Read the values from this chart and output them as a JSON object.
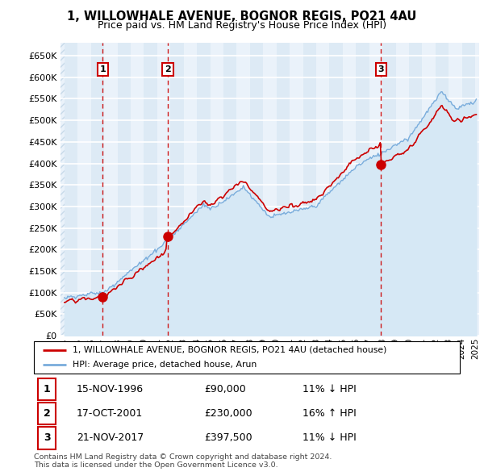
{
  "title": "1, WILLOWHALE AVENUE, BOGNOR REGIS, PO21 4AU",
  "subtitle": "Price paid vs. HM Land Registry's House Price Index (HPI)",
  "property_label": "1, WILLOWHALE AVENUE, BOGNOR REGIS, PO21 4AU (detached house)",
  "hpi_label": "HPI: Average price, detached house, Arun",
  "transactions": [
    {
      "num": 1,
      "date": "15-NOV-1996",
      "price": 90000,
      "pct": "11%",
      "dir": "↓",
      "year": 1996.88
    },
    {
      "num": 2,
      "date": "17-OCT-2001",
      "price": 230000,
      "pct": "16%",
      "dir": "↑",
      "year": 2001.79
    },
    {
      "num": 3,
      "date": "21-NOV-2017",
      "price": 397500,
      "pct": "11%",
      "dir": "↓",
      "year": 2017.89
    }
  ],
  "property_color": "#cc0000",
  "hpi_color": "#7aaddc",
  "hpi_fill_color": "#d6e8f5",
  "bg_even_color": "#ddeaf5",
  "bg_odd_color": "#eaf2fa",
  "hatch_color": "#c8daea",
  "grid_color": "#ffffff",
  "ylim": [
    0,
    680000
  ],
  "yticks": [
    0,
    50000,
    100000,
    150000,
    200000,
    250000,
    300000,
    350000,
    400000,
    450000,
    500000,
    550000,
    600000,
    650000
  ],
  "xlim_start": 1993.7,
  "xlim_end": 2025.3,
  "footer": "Contains HM Land Registry data © Crown copyright and database right 2024.\nThis data is licensed under the Open Government Licence v3.0."
}
